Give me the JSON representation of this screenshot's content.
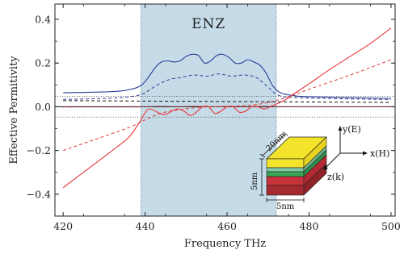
{
  "chart_data": {
    "type": "line",
    "xlabel": "Frequency THz",
    "ylabel": "Effective Permitivity",
    "xlim": [
      418,
      501
    ],
    "ylim": [
      -0.5,
      0.47
    ],
    "xticks": [
      420,
      440,
      460,
      480,
      500
    ],
    "yticks": [
      -0.4,
      -0.2,
      0.0,
      0.2,
      0.4
    ],
    "xtick_labels": [
      "420",
      "440",
      "460",
      "480",
      "500"
    ],
    "ytick_labels": [
      "−0.4",
      "−0.2",
      "0.0",
      "0.2",
      "0.4"
    ],
    "grid": false,
    "zero_line": true,
    "reference_lines": [
      0.047,
      -0.047
    ],
    "highlight_region": {
      "label": "ENZ",
      "x_start": 439,
      "x_end": 472,
      "color": "#c5dbe7"
    },
    "colors": {
      "blue": "#2b3d9a",
      "red": "#e8383b",
      "black": "#111111"
    },
    "series": [
      {
        "color": "blue",
        "style": "solid",
        "x": [
          420,
          430,
          434,
          436,
          438,
          439.5,
          441,
          442.5,
          444,
          445.5,
          447,
          448.5,
          450,
          451.5,
          453,
          454.5,
          456,
          457.5,
          459,
          460.5,
          462,
          463.5,
          465,
          466.5,
          468,
          469.5,
          471,
          472.5,
          474,
          476,
          480,
          500
        ],
        "y": [
          0.064,
          0.068,
          0.072,
          0.078,
          0.088,
          0.105,
          0.14,
          0.18,
          0.205,
          0.21,
          0.205,
          0.21,
          0.23,
          0.24,
          0.235,
          0.2,
          0.21,
          0.235,
          0.24,
          0.225,
          0.2,
          0.2,
          0.215,
          0.205,
          0.19,
          0.155,
          0.1,
          0.07,
          0.058,
          0.052,
          0.046,
          0.038
        ]
      },
      {
        "color": "blue",
        "style": "dashed",
        "x": [
          420,
          430,
          436,
          439.5,
          443,
          446,
          449,
          452,
          455,
          458,
          461,
          464,
          467,
          470,
          473,
          480,
          500
        ],
        "y": [
          0.034,
          0.038,
          0.045,
          0.06,
          0.1,
          0.125,
          0.135,
          0.145,
          0.14,
          0.15,
          0.14,
          0.145,
          0.135,
          0.09,
          0.05,
          0.04,
          0.033
        ]
      },
      {
        "color": "black",
        "style": "dashed",
        "x": [
          420,
          440,
          460,
          480,
          500
        ],
        "y": [
          0.028,
          0.026,
          0.024,
          0.022,
          0.02
        ]
      },
      {
        "color": "red",
        "style": "solid",
        "x": [
          420,
          426,
          432,
          436,
          438.5,
          440.5,
          442,
          443.5,
          445,
          446.5,
          448,
          449.5,
          451,
          452.5,
          454,
          455.5,
          457,
          458.5,
          460,
          461.5,
          463,
          464.5,
          466,
          467.5,
          469,
          470.5,
          472,
          474,
          476,
          480,
          485,
          490,
          495,
          500
        ],
        "y": [
          -0.37,
          -0.285,
          -0.2,
          -0.14,
          -0.075,
          -0.015,
          -0.015,
          -0.03,
          -0.035,
          -0.02,
          -0.01,
          -0.02,
          -0.04,
          -0.025,
          0.0,
          0.0,
          -0.03,
          -0.02,
          0.0,
          0.0,
          -0.025,
          -0.02,
          0.0,
          0.0,
          -0.01,
          0.0,
          0.012,
          0.03,
          0.055,
          0.105,
          0.17,
          0.23,
          0.29,
          0.36
        ]
      },
      {
        "color": "red",
        "style": "dashed",
        "x": [
          420,
          430,
          436,
          440,
          443,
          446,
          449,
          452,
          455,
          458,
          461,
          464,
          467,
          470,
          474,
          480,
          490,
          500
        ],
        "y": [
          -0.2,
          -0.135,
          -0.095,
          -0.06,
          -0.035,
          -0.02,
          -0.012,
          -0.005,
          0.0,
          0.0,
          0.002,
          0.005,
          0.01,
          0.02,
          0.04,
          0.08,
          0.145,
          0.215
        ]
      },
      {
        "color": "red",
        "style": "dotted",
        "x": [
          420,
          436,
          440,
          444,
          448,
          452,
          456,
          460,
          464,
          468,
          472,
          476,
          500
        ],
        "y": [
          -0.002,
          -0.002,
          0.0,
          0.003,
          0.0,
          0.004,
          0.0,
          0.003,
          0.0,
          0.004,
          0.002,
          0.0,
          0.0
        ]
      }
    ]
  },
  "inset": {
    "dim_width": "20nm",
    "dim_height": "5nm",
    "dim_depth": "5nm",
    "axis_y": "y(E)",
    "axis_x": "x(H)",
    "axis_z": "z(k)",
    "layer_colors": [
      "#f3e32a",
      "#7fc9a2",
      "#3aa657",
      "#c8323a",
      "#a52a2f"
    ]
  }
}
